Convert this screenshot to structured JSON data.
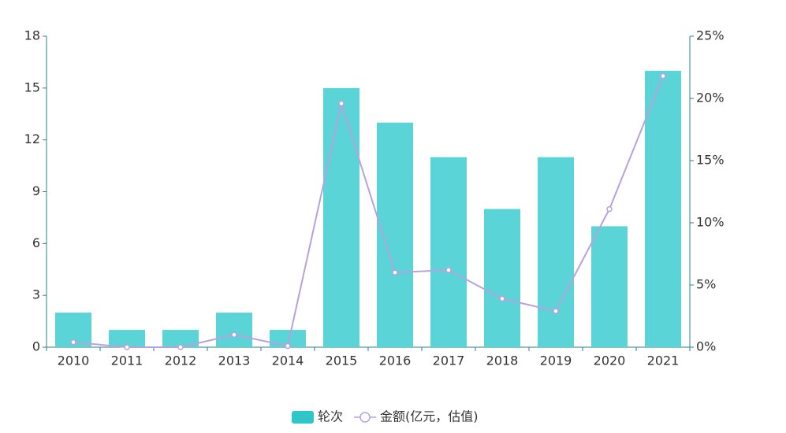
{
  "chart_data": {
    "type": "bar-line",
    "categories": [
      "2010",
      "2011",
      "2012",
      "2013",
      "2014",
      "2015",
      "2016",
      "2017",
      "2018",
      "2019",
      "2020",
      "2021"
    ],
    "series": [
      {
        "name": "轮次",
        "type": "bar",
        "color": "#5ad4d6",
        "legend_color": "#2ec7c9",
        "values": [
          2,
          1,
          1,
          2,
          1,
          15,
          13,
          11,
          8,
          11,
          7,
          16
        ]
      },
      {
        "name": "金额(亿元，估值)",
        "type": "line",
        "axis": "y2",
        "color": "#b6a2de",
        "values": [
          0.4,
          0,
          0,
          1.0,
          0.1,
          19.6,
          6.0,
          6.2,
          3.9,
          2.9,
          11.1,
          21.8
        ]
      }
    ],
    "ylim": [
      0,
      18
    ],
    "yticks": [
      0,
      3,
      6,
      9,
      12,
      15,
      18
    ],
    "y2lim": [
      0,
      25
    ],
    "y2ticks": [
      {
        "value": 0,
        "label": "0%"
      },
      {
        "value": 5,
        "label": "5%"
      },
      {
        "value": 10,
        "label": "10%"
      },
      {
        "value": 15,
        "label": "15%"
      },
      {
        "value": 20,
        "label": "20%"
      },
      {
        "value": 25,
        "label": "25%"
      }
    ],
    "legend": "bottom"
  }
}
